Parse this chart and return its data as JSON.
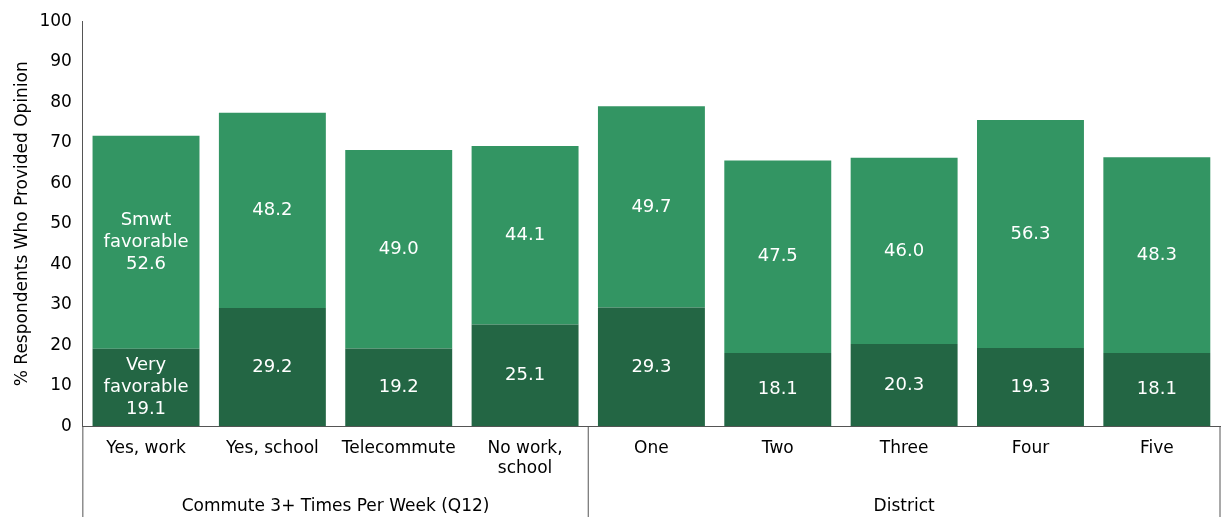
{
  "chart_data": {
    "type": "bar",
    "stacked": true,
    "ylabel": "% Respondents Who Provided Opinion",
    "categories": [
      "Yes, work",
      "Yes, school",
      "Telecommute",
      "No work, school",
      "One",
      "Two",
      "Three",
      "Four",
      "Five"
    ],
    "series": [
      {
        "name": "Very favorable",
        "color": "#236644",
        "values": [
          19.1,
          29.2,
          19.2,
          25.1,
          29.3,
          18.1,
          20.3,
          19.3,
          18.1
        ],
        "value_labels": [
          "19.1",
          "29.2",
          "19.2",
          "25.1",
          "29.3",
          "18.1",
          "20.3",
          "19.3",
          "18.1"
        ]
      },
      {
        "name": "Smwt favorable",
        "color": "#339563",
        "values": [
          52.6,
          48.2,
          49.0,
          44.1,
          49.7,
          47.5,
          46.0,
          56.3,
          48.3
        ],
        "value_labels": [
          "52.6",
          "48.2",
          "49.0",
          "44.1",
          "49.7",
          "47.5",
          "46.0",
          "56.3",
          "48.3"
        ]
      }
    ],
    "ylim": [
      0,
      100
    ],
    "yticks": [
      0,
      10,
      20,
      30,
      40,
      50,
      60,
      70,
      80,
      90,
      100
    ],
    "grid": false,
    "legend": false,
    "annotations": [
      "Commute 3+ Times Per Week (Q12)",
      "District"
    ]
  }
}
